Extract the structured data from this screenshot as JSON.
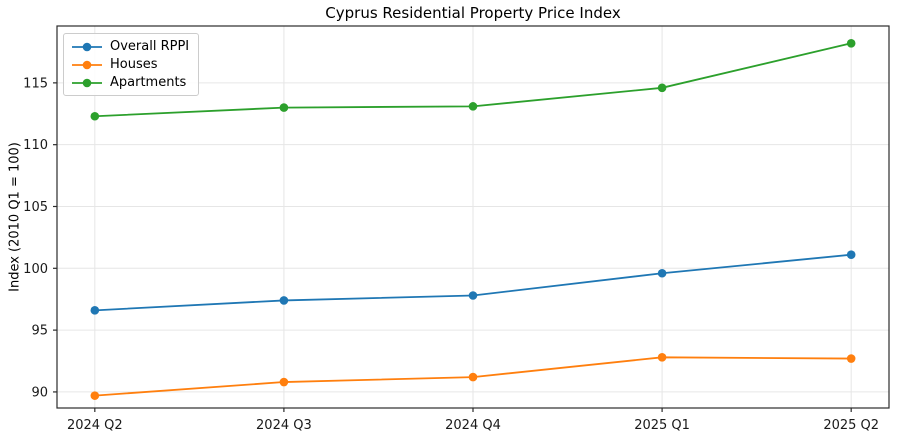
{
  "chart_data": {
    "type": "line",
    "title": "Cyprus Residential Property Price Index",
    "xlabel": "",
    "ylabel": "Index (2010 Q1 = 100)",
    "categories": [
      "2024 Q2",
      "2024 Q3",
      "2024 Q4",
      "2025 Q1",
      "2025 Q2"
    ],
    "series": [
      {
        "name": "Overall RPPI",
        "color": "#1f77b4",
        "values": [
          96.6,
          97.4,
          97.8,
          99.6,
          101.1
        ]
      },
      {
        "name": "Houses",
        "color": "#ff7f0e",
        "values": [
          89.7,
          90.8,
          91.2,
          92.8,
          92.7
        ]
      },
      {
        "name": "Apartments",
        "color": "#2ca02c",
        "values": [
          112.3,
          113.0,
          113.1,
          114.6,
          118.2
        ]
      }
    ],
    "yticks": [
      90,
      95,
      100,
      105,
      110,
      115
    ],
    "ylim": [
      88.7,
      119.6
    ],
    "grid": true,
    "legend_position": "upper-left",
    "marker": "circle",
    "colors": {
      "grid": "#e6e6e6",
      "spine": "#2b2b2b",
      "tick_text": "#1a1a1a",
      "background": "#ffffff"
    }
  }
}
